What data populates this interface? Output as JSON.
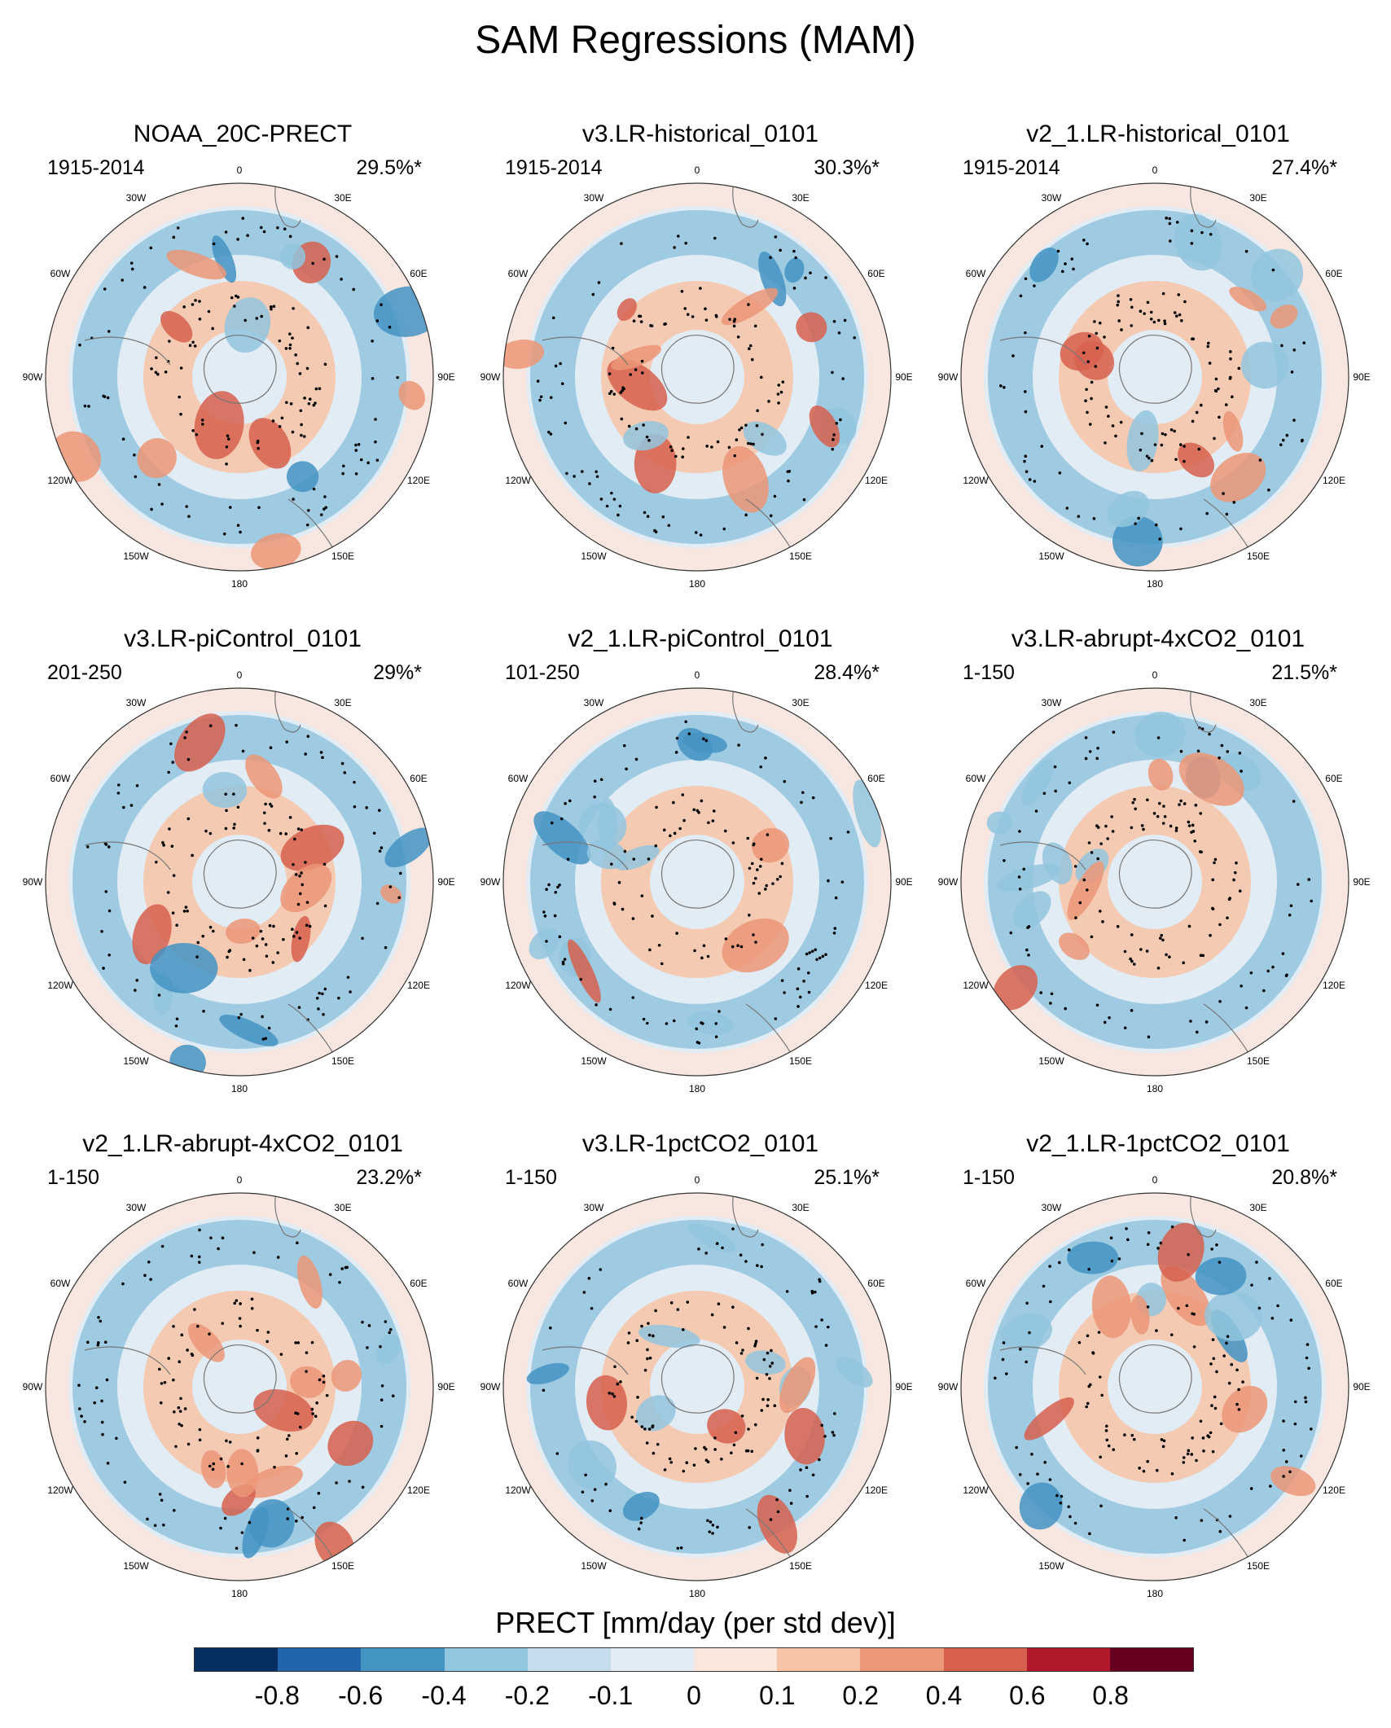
{
  "title": "SAM Regressions (MAM)",
  "longitude_labels": [
    "0",
    "30E",
    "60E",
    "90E",
    "120E",
    "150E",
    "180",
    "150W",
    "120W",
    "90W",
    "60W",
    "30W"
  ],
  "panels": [
    {
      "title": "NOAA_20C-PRECT",
      "period": "1915-2014",
      "pct": "29.5%*"
    },
    {
      "title": "v3.LR-historical_0101",
      "period": "1915-2014",
      "pct": "30.3%*"
    },
    {
      "title": "v2_1.LR-historical_0101",
      "period": "1915-2014",
      "pct": "27.4%*"
    },
    {
      "title": "v3.LR-piControl_0101",
      "period": "201-250",
      "pct": "29%*"
    },
    {
      "title": "v2_1.LR-piControl_0101",
      "period": "101-250",
      "pct": "28.4%*"
    },
    {
      "title": "v3.LR-abrupt-4xCO2_0101",
      "period": "1-150",
      "pct": "21.5%*"
    },
    {
      "title": "v2_1.LR-abrupt-4xCO2_0101",
      "period": "1-150",
      "pct": "23.2%*"
    },
    {
      "title": "v3.LR-1pctCO2_0101",
      "period": "1-150",
      "pct": "25.1%*"
    },
    {
      "title": "v2_1.LR-1pctCO2_0101",
      "period": "1-150",
      "pct": "20.8%*"
    }
  ],
  "colorbar": {
    "title": "PRECT [mm/day (per std dev)]",
    "colors": [
      "#053061",
      "#2166ac",
      "#4393c3",
      "#92c5de",
      "#c5dcec",
      "#e2ecf4",
      "#fae6dc",
      "#f7c4a6",
      "#ec9777",
      "#d6604d",
      "#b2182b",
      "#67001f"
    ],
    "labels": [
      "-0.8",
      "-0.6",
      "-0.4",
      "-0.2",
      "-0.1",
      "0",
      "0.1",
      "0.2",
      "0.4",
      "0.6",
      "0.8"
    ]
  }
}
